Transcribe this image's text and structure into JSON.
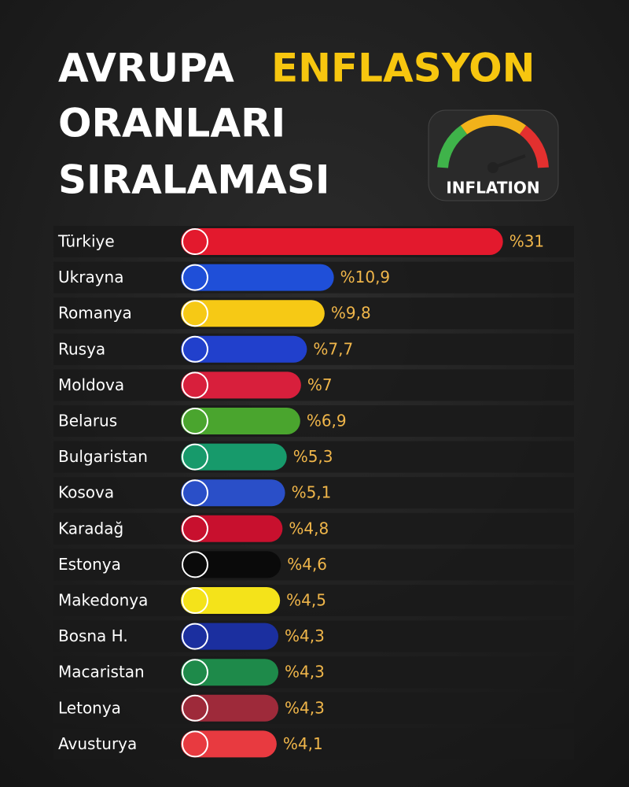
{
  "chart_data": {
    "type": "bar",
    "title_parts": [
      {
        "text": "AVRUPA",
        "color": "#ffffff"
      },
      {
        "text": "ENFLASYON",
        "color": "#f7c60f"
      },
      {
        "text": "ORANLARI",
        "color": "#ffffff"
      },
      {
        "text": "SIRALAMASI",
        "color": "#ffffff"
      }
    ],
    "badge": "INFLATION",
    "categories": [
      "Türkiye",
      "Ukrayna",
      "Romanya",
      "Rusya",
      "Moldova",
      "Belarus",
      "Bulgaristan",
      "Kosova",
      "Karadağ",
      "Estonya",
      "Makedonya",
      "Bosna H.",
      "Macaristan",
      "Letonya",
      "Avusturya"
    ],
    "values": [
      31,
      10.9,
      9.8,
      7.7,
      7,
      6.9,
      5.3,
      5.1,
      4.8,
      4.6,
      4.5,
      4.3,
      4.3,
      4.3,
      4.1
    ],
    "value_labels": [
      "%31",
      "%10,9",
      "%9,8",
      "%7,7",
      "%7",
      "%6,9",
      "%5,3",
      "%5,1",
      "%4,8",
      "%4,6",
      "%4,5",
      "%4,3",
      "%4,3",
      "%4,3",
      "%4,1"
    ],
    "colors": [
      "#e3192d",
      "#1f4fd8",
      "#f6c915",
      "#2140cc",
      "#d81f3c",
      "#4aa52e",
      "#179a6b",
      "#2a4fc8",
      "#c8102e",
      "#0a0a0a",
      "#f4e31a",
      "#1b2f9f",
      "#1e8a4a",
      "#9e2a3a",
      "#e83a40"
    ]
  }
}
